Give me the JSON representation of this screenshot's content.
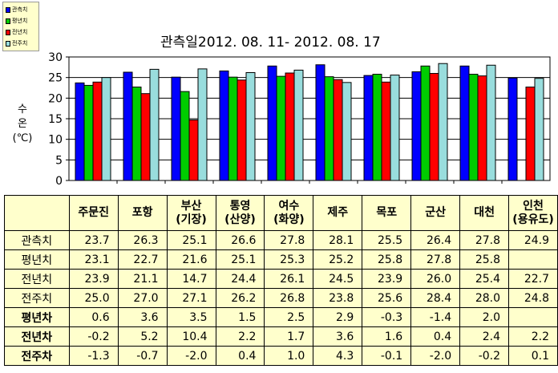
{
  "legend": [
    {
      "label": "관측치",
      "color": "#0000ff"
    },
    {
      "label": "평년치",
      "color": "#00cc00"
    },
    {
      "label": "전년치",
      "color": "#ff0000"
    },
    {
      "label": "전주치",
      "color": "#99dddd"
    }
  ],
  "chart_data": {
    "type": "bar",
    "title": "관측일2012. 08. 11-  2012. 08. 17",
    "ylabel": "수\n온\n(℃)",
    "xlabel": "",
    "ylim": [
      0,
      30
    ],
    "yticks": [
      0,
      5,
      10,
      15,
      20,
      25,
      30
    ],
    "grid": true,
    "legend_position": "top-left",
    "categories": [
      "주문진",
      "포항",
      "부산(기장)",
      "통영(산양)",
      "여수(화양)",
      "제주",
      "목포",
      "군산",
      "대천",
      "인천(용유도)"
    ],
    "series": [
      {
        "name": "관측치",
        "color": "#0000ff",
        "values": [
          23.7,
          26.3,
          25.1,
          26.6,
          27.8,
          28.1,
          25.5,
          26.4,
          27.8,
          24.9
        ]
      },
      {
        "name": "평년치",
        "color": "#00cc00",
        "values": [
          23.1,
          22.7,
          21.6,
          25.1,
          25.3,
          25.2,
          25.8,
          27.8,
          25.8,
          null
        ]
      },
      {
        "name": "전년치",
        "color": "#ff0000",
        "values": [
          23.9,
          21.1,
          14.7,
          24.4,
          26.1,
          24.5,
          23.9,
          26.0,
          25.4,
          22.7
        ]
      },
      {
        "name": "전주치",
        "color": "#99dddd",
        "values": [
          25.0,
          27.0,
          27.1,
          26.2,
          26.8,
          23.8,
          25.6,
          28.4,
          28.0,
          24.8
        ]
      }
    ]
  },
  "table": {
    "headers": [
      [
        "주문진"
      ],
      [
        "포항"
      ],
      [
        "부산",
        "(기장)"
      ],
      [
        "통영",
        "(산양)"
      ],
      [
        "여수",
        "(화양)"
      ],
      [
        "제주"
      ],
      [
        "목포"
      ],
      [
        "군산"
      ],
      [
        "대천"
      ],
      [
        "인천",
        "(용유도)"
      ]
    ],
    "rows": [
      {
        "label": "관측치",
        "diff": false,
        "values": [
          "23.7",
          "26.3",
          "25.1",
          "26.6",
          "27.8",
          "28.1",
          "25.5",
          "26.4",
          "27.8",
          "24.9"
        ]
      },
      {
        "label": "평년치",
        "diff": false,
        "values": [
          "23.1",
          "22.7",
          "21.6",
          "25.1",
          "25.3",
          "25.2",
          "25.8",
          "27.8",
          "25.8",
          ""
        ]
      },
      {
        "label": "전년치",
        "diff": false,
        "values": [
          "23.9",
          "21.1",
          "14.7",
          "24.4",
          "26.1",
          "24.5",
          "23.9",
          "26.0",
          "25.4",
          "22.7"
        ]
      },
      {
        "label": "전주치",
        "diff": false,
        "values": [
          "25.0",
          "27.0",
          "27.1",
          "26.2",
          "26.8",
          "23.8",
          "25.6",
          "28.4",
          "28.0",
          "24.8"
        ]
      },
      {
        "label": "평년차",
        "diff": true,
        "values": [
          "0.6",
          "3.6",
          "3.5",
          "1.5",
          "2.5",
          "2.9",
          "-0.3",
          "-1.4",
          "2.0",
          ""
        ]
      },
      {
        "label": "전년차",
        "diff": true,
        "values": [
          "-0.2",
          "5.2",
          "10.4",
          "2.2",
          "1.7",
          "3.6",
          "1.6",
          "0.4",
          "2.4",
          "2.2"
        ]
      },
      {
        "label": "전주차",
        "diff": true,
        "values": [
          "-1.3",
          "-0.7",
          "-2.0",
          "0.4",
          "1.0",
          "4.3",
          "-0.1",
          "-2.0",
          "-0.2",
          "0.1"
        ]
      }
    ]
  }
}
